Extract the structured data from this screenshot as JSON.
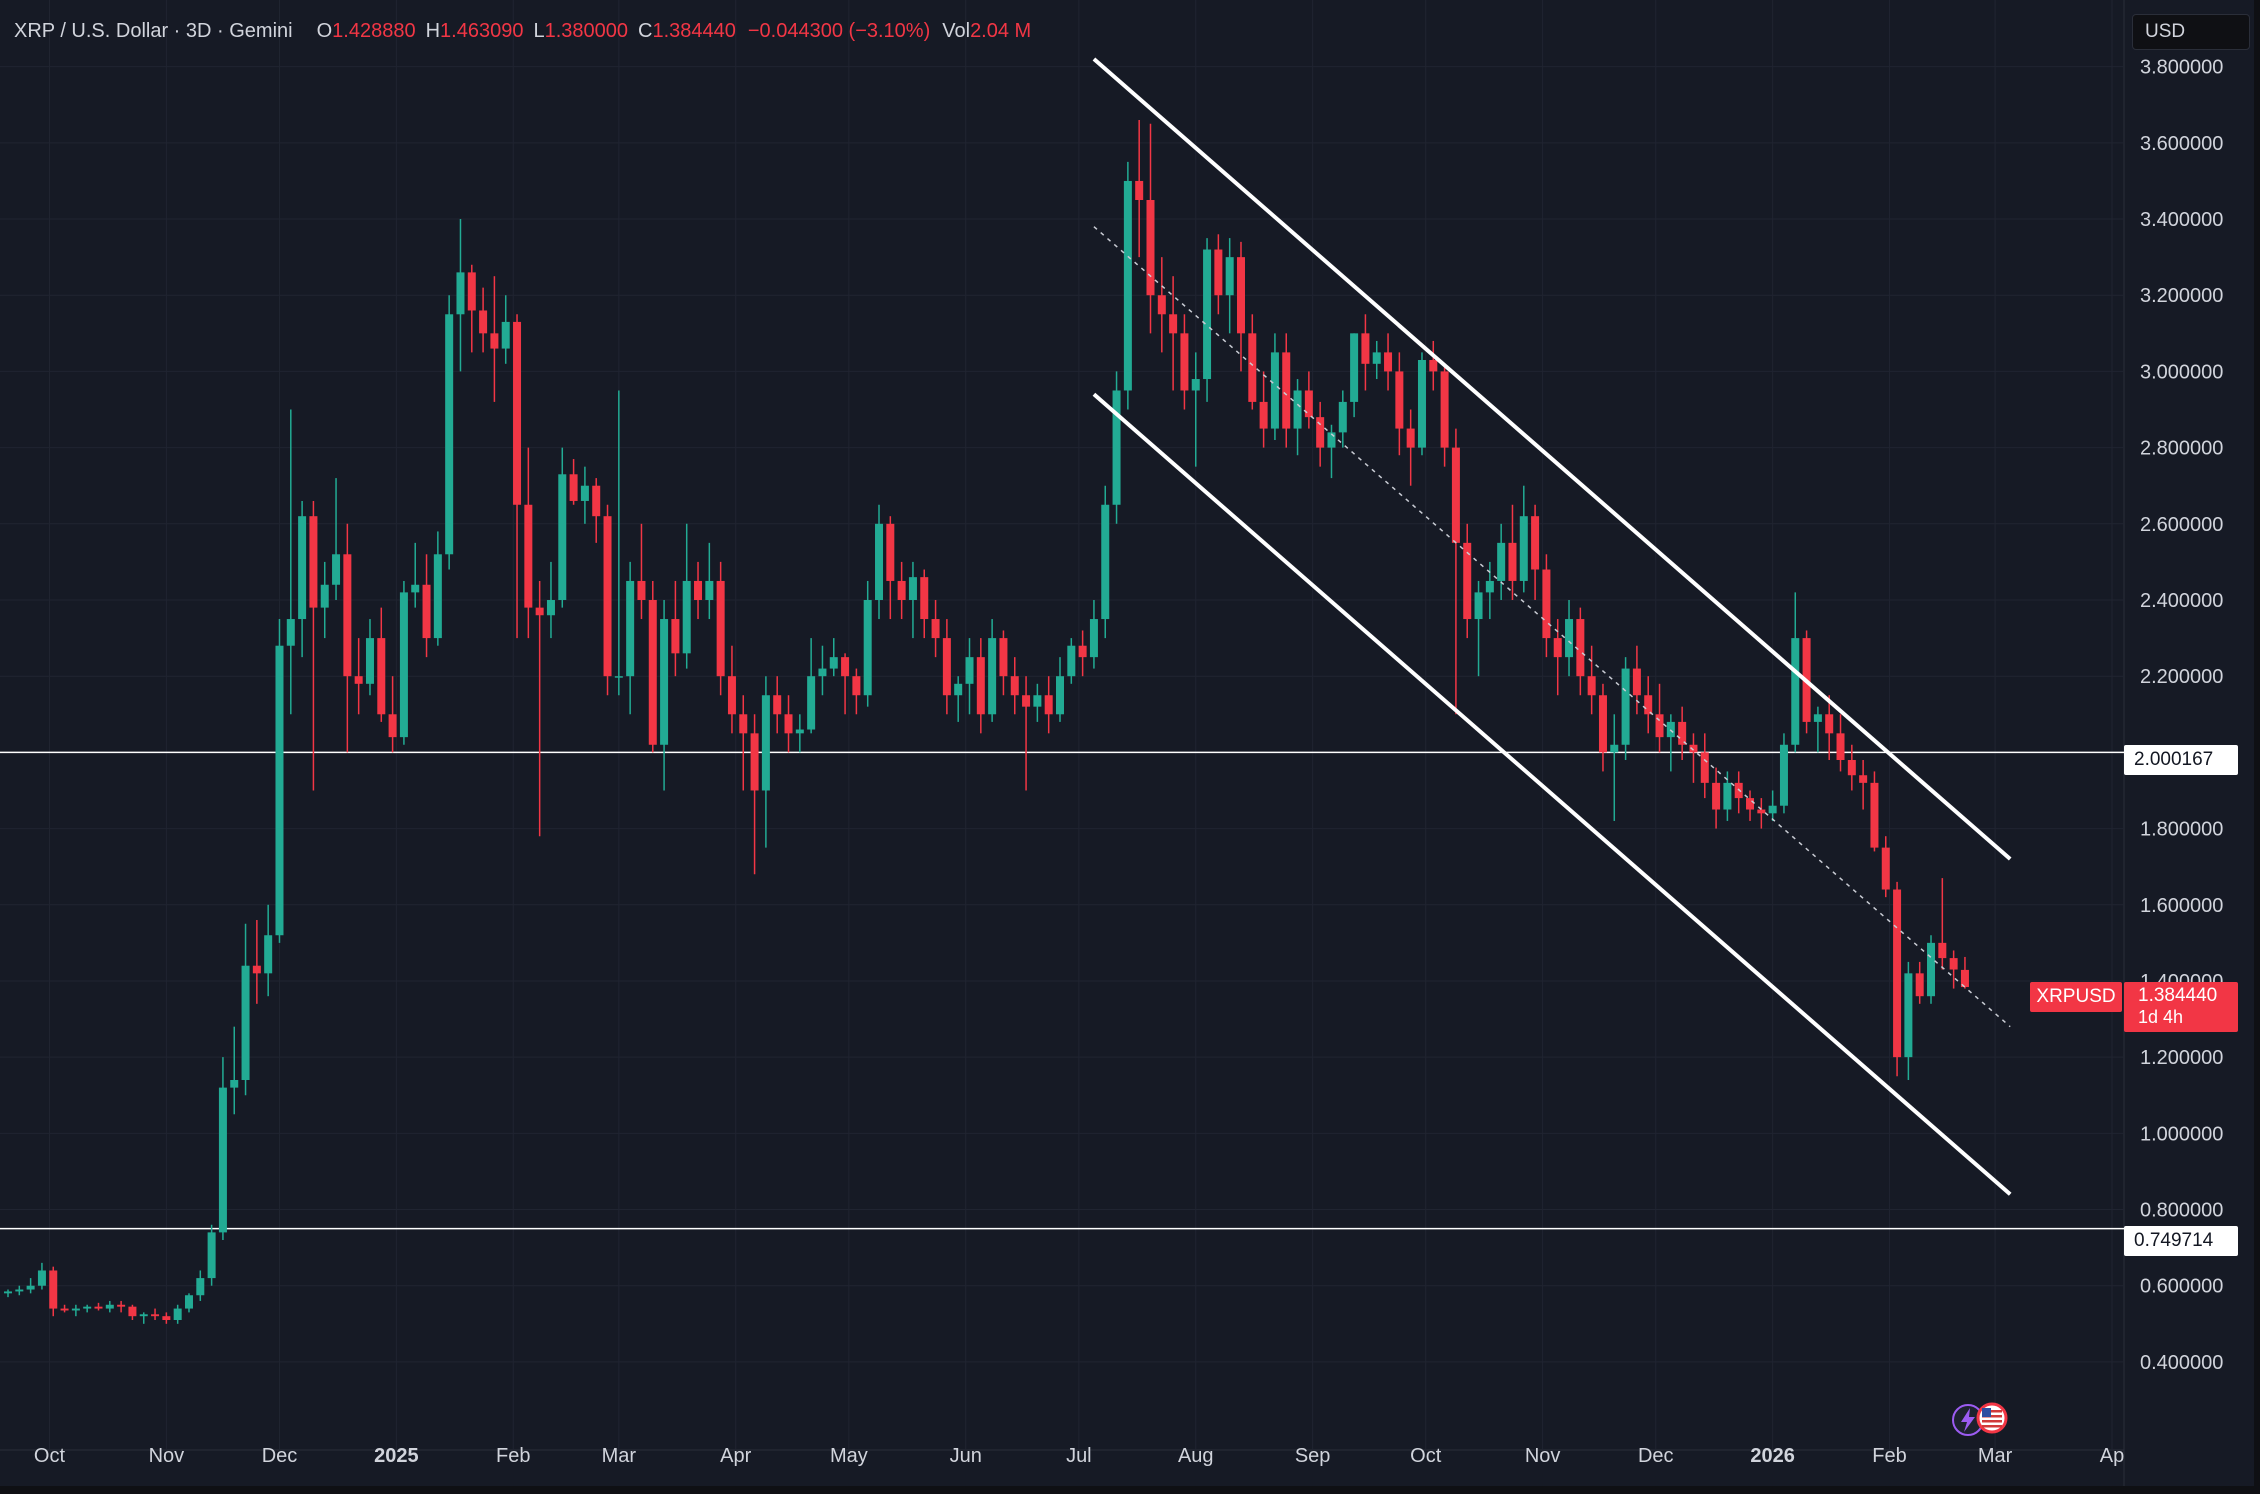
{
  "legend": {
    "symbol": "XRP / U.S. Dollar · 3D · Gemini",
    "open_label": "O",
    "open": "1.428880",
    "high_label": "H",
    "high": "1.463090",
    "low_label": "L",
    "low": "1.380000",
    "close_label": "C",
    "close": "1.384440",
    "change": "−0.044300 (−3.10%)",
    "vol_label": "Vol",
    "vol": "2.04 M"
  },
  "currency_button": "USD",
  "price_tag": {
    "symbol": "XRPUSD",
    "price": "1.384440",
    "countdown": "1d 4h"
  },
  "level_tags": [
    "2.000167",
    "0.749714"
  ],
  "colors": {
    "background": "#161a25",
    "up": "#22ab94",
    "down": "#f23645",
    "grid": "#202431",
    "text": "#d1d4dc",
    "lines": "#ffffff"
  },
  "icons": [
    "lightning-icon",
    "us-flag-icon"
  ],
  "chart_data": {
    "type": "candlestick",
    "title": "XRP / U.S. Dollar · 3D · Gemini",
    "y_ticks": [
      "3.800000",
      "3.600000",
      "3.400000",
      "3.200000",
      "3.000000",
      "2.800000",
      "2.600000",
      "2.400000",
      "2.200000",
      "2.000000",
      "1.800000",
      "1.600000",
      "1.400000",
      "1.200000",
      "1.000000",
      "0.800000",
      "0.600000",
      "0.400000"
    ],
    "x_labels": [
      {
        "label": "Oct",
        "date": "2024-10-01"
      },
      {
        "label": "Nov",
        "date": "2024-11-01"
      },
      {
        "label": "Dec",
        "date": "2024-12-01"
      },
      {
        "label": "2025",
        "date": "2025-01-01",
        "bold": true
      },
      {
        "label": "Feb",
        "date": "2025-02-01"
      },
      {
        "label": "Mar",
        "date": "2025-03-01"
      },
      {
        "label": "Apr",
        "date": "2025-04-01"
      },
      {
        "label": "May",
        "date": "2025-05-01"
      },
      {
        "label": "Jun",
        "date": "2025-06-01"
      },
      {
        "label": "Jul",
        "date": "2025-07-01"
      },
      {
        "label": "Aug",
        "date": "2025-08-01"
      },
      {
        "label": "Sep",
        "date": "2025-09-01"
      },
      {
        "label": "Oct",
        "date": "2025-10-01"
      },
      {
        "label": "Nov",
        "date": "2025-11-01"
      },
      {
        "label": "Dec",
        "date": "2025-12-01"
      },
      {
        "label": "2026",
        "date": "2026-01-01",
        "bold": true
      },
      {
        "label": "Feb",
        "date": "2026-02-01"
      },
      {
        "label": "Mar",
        "date": "2026-03-01"
      },
      {
        "label": "Ap",
        "date": "2026-04-01"
      }
    ],
    "ylim": [
      0.3,
      3.87
    ],
    "xlim": [
      "2024-09-20",
      "2026-04-01"
    ],
    "horizontal_levels": [
      2.000167,
      0.749714
    ],
    "channel": {
      "upper": [
        [
          "2025-07-05",
          3.82
        ],
        [
          "2026-03-05",
          1.72
        ]
      ],
      "lower": [
        [
          "2025-07-05",
          2.94
        ],
        [
          "2026-03-05",
          0.84
        ]
      ],
      "mid_dotted": [
        [
          "2025-07-05",
          3.38
        ],
        [
          "2026-03-05",
          1.28
        ]
      ]
    },
    "candles": [
      [
        "2024-09-20",
        0.58,
        0.59,
        0.57,
        0.585
      ],
      [
        "2024-09-23",
        0.585,
        0.6,
        0.575,
        0.59
      ],
      [
        "2024-09-26",
        0.59,
        0.62,
        0.58,
        0.6
      ],
      [
        "2024-09-29",
        0.6,
        0.66,
        0.59,
        0.64
      ],
      [
        "2024-10-02",
        0.64,
        0.65,
        0.52,
        0.54
      ],
      [
        "2024-10-05",
        0.54,
        0.55,
        0.53,
        0.535
      ],
      [
        "2024-10-08",
        0.535,
        0.55,
        0.52,
        0.54
      ],
      [
        "2024-10-11",
        0.54,
        0.55,
        0.53,
        0.545
      ],
      [
        "2024-10-14",
        0.545,
        0.555,
        0.535,
        0.54
      ],
      [
        "2024-10-17",
        0.54,
        0.56,
        0.53,
        0.55
      ],
      [
        "2024-10-20",
        0.55,
        0.56,
        0.53,
        0.545
      ],
      [
        "2024-10-23",
        0.545,
        0.55,
        0.51,
        0.52
      ],
      [
        "2024-10-26",
        0.52,
        0.53,
        0.5,
        0.525
      ],
      [
        "2024-10-29",
        0.525,
        0.54,
        0.51,
        0.52
      ],
      [
        "2024-11-01",
        0.52,
        0.53,
        0.5,
        0.51
      ],
      [
        "2024-11-04",
        0.51,
        0.55,
        0.5,
        0.54
      ],
      [
        "2024-11-07",
        0.54,
        0.58,
        0.53,
        0.575
      ],
      [
        "2024-11-10",
        0.575,
        0.64,
        0.56,
        0.62
      ],
      [
        "2024-11-13",
        0.62,
        0.76,
        0.6,
        0.74
      ],
      [
        "2024-11-16",
        0.74,
        1.2,
        0.72,
        1.12
      ],
      [
        "2024-11-19",
        1.12,
        1.28,
        1.05,
        1.14
      ],
      [
        "2024-11-22",
        1.14,
        1.55,
        1.1,
        1.44
      ],
      [
        "2024-11-25",
        1.44,
        1.56,
        1.34,
        1.42
      ],
      [
        "2024-11-28",
        1.42,
        1.6,
        1.36,
        1.52
      ],
      [
        "2024-12-01",
        1.52,
        2.35,
        1.5,
        2.28
      ],
      [
        "2024-12-04",
        2.28,
        2.9,
        2.1,
        2.35
      ],
      [
        "2024-12-07",
        2.35,
        2.66,
        2.25,
        2.62
      ],
      [
        "2024-12-10",
        2.62,
        2.66,
        1.9,
        2.38
      ],
      [
        "2024-12-13",
        2.38,
        2.5,
        2.3,
        2.44
      ],
      [
        "2024-12-16",
        2.44,
        2.72,
        2.4,
        2.52
      ],
      [
        "2024-12-19",
        2.52,
        2.6,
        2.0,
        2.2
      ],
      [
        "2024-12-22",
        2.2,
        2.3,
        2.1,
        2.18
      ],
      [
        "2024-12-25",
        2.18,
        2.35,
        2.15,
        2.3
      ],
      [
        "2024-12-28",
        2.3,
        2.38,
        2.08,
        2.1
      ],
      [
        "2024-12-31",
        2.1,
        2.2,
        2.0,
        2.04
      ],
      [
        "2025-01-03",
        2.04,
        2.45,
        2.02,
        2.42
      ],
      [
        "2025-01-06",
        2.42,
        2.55,
        2.38,
        2.44
      ],
      [
        "2025-01-09",
        2.44,
        2.52,
        2.25,
        2.3
      ],
      [
        "2025-01-12",
        2.3,
        2.58,
        2.28,
        2.52
      ],
      [
        "2025-01-15",
        2.52,
        3.2,
        2.48,
        3.15
      ],
      [
        "2025-01-18",
        3.15,
        3.4,
        3.0,
        3.26
      ],
      [
        "2025-01-21",
        3.26,
        3.28,
        3.05,
        3.16
      ],
      [
        "2025-01-24",
        3.16,
        3.22,
        3.05,
        3.1
      ],
      [
        "2025-01-27",
        3.1,
        3.25,
        2.92,
        3.06
      ],
      [
        "2025-01-30",
        3.06,
        3.2,
        3.02,
        3.13
      ],
      [
        "2025-02-02",
        3.13,
        3.15,
        2.3,
        2.65
      ],
      [
        "2025-02-05",
        2.65,
        2.8,
        2.3,
        2.38
      ],
      [
        "2025-02-08",
        2.38,
        2.45,
        1.78,
        2.36
      ],
      [
        "2025-02-11",
        2.36,
        2.5,
        2.3,
        2.4
      ],
      [
        "2025-02-14",
        2.4,
        2.8,
        2.38,
        2.73
      ],
      [
        "2025-02-17",
        2.73,
        2.77,
        2.65,
        2.66
      ],
      [
        "2025-02-20",
        2.66,
        2.75,
        2.6,
        2.7
      ],
      [
        "2025-02-23",
        2.7,
        2.72,
        2.55,
        2.62
      ],
      [
        "2025-02-26",
        2.62,
        2.65,
        2.15,
        2.2
      ],
      [
        "2025-03-01",
        2.2,
        2.95,
        2.15,
        2.2
      ],
      [
        "2025-03-04",
        2.2,
        2.5,
        2.1,
        2.45
      ],
      [
        "2025-03-07",
        2.45,
        2.6,
        2.35,
        2.4
      ],
      [
        "2025-03-10",
        2.4,
        2.45,
        2.0,
        2.02
      ],
      [
        "2025-03-13",
        2.02,
        2.4,
        1.9,
        2.35
      ],
      [
        "2025-03-16",
        2.35,
        2.45,
        2.2,
        2.26
      ],
      [
        "2025-03-19",
        2.26,
        2.6,
        2.22,
        2.45
      ],
      [
        "2025-03-22",
        2.45,
        2.5,
        2.35,
        2.4
      ],
      [
        "2025-03-25",
        2.4,
        2.55,
        2.35,
        2.45
      ],
      [
        "2025-03-28",
        2.45,
        2.5,
        2.15,
        2.2
      ],
      [
        "2025-03-31",
        2.2,
        2.28,
        2.05,
        2.1
      ],
      [
        "2025-04-03",
        2.1,
        2.15,
        1.9,
        2.05
      ],
      [
        "2025-04-06",
        2.05,
        2.1,
        1.68,
        1.9
      ],
      [
        "2025-04-09",
        1.9,
        2.2,
        1.75,
        2.15
      ],
      [
        "2025-04-12",
        2.15,
        2.2,
        2.05,
        2.1
      ],
      [
        "2025-04-15",
        2.1,
        2.15,
        2.0,
        2.05
      ],
      [
        "2025-04-18",
        2.05,
        2.1,
        2.0,
        2.06
      ],
      [
        "2025-04-21",
        2.06,
        2.3,
        2.05,
        2.2
      ],
      [
        "2025-04-24",
        2.2,
        2.28,
        2.15,
        2.22
      ],
      [
        "2025-04-27",
        2.22,
        2.3,
        2.2,
        2.25
      ],
      [
        "2025-04-30",
        2.25,
        2.26,
        2.1,
        2.2
      ],
      [
        "2025-05-03",
        2.2,
        2.22,
        2.1,
        2.15
      ],
      [
        "2025-05-06",
        2.15,
        2.45,
        2.12,
        2.4
      ],
      [
        "2025-05-09",
        2.4,
        2.65,
        2.35,
        2.6
      ],
      [
        "2025-05-12",
        2.6,
        2.62,
        2.35,
        2.45
      ],
      [
        "2025-05-15",
        2.45,
        2.5,
        2.35,
        2.4
      ],
      [
        "2025-05-18",
        2.4,
        2.5,
        2.3,
        2.46
      ],
      [
        "2025-05-21",
        2.46,
        2.48,
        2.3,
        2.35
      ],
      [
        "2025-05-24",
        2.35,
        2.4,
        2.25,
        2.3
      ],
      [
        "2025-05-27",
        2.3,
        2.35,
        2.1,
        2.15
      ],
      [
        "2025-05-30",
        2.15,
        2.2,
        2.08,
        2.18
      ],
      [
        "2025-06-02",
        2.18,
        2.3,
        2.1,
        2.25
      ],
      [
        "2025-06-05",
        2.25,
        2.3,
        2.05,
        2.1
      ],
      [
        "2025-06-08",
        2.1,
        2.35,
        2.08,
        2.3
      ],
      [
        "2025-06-11",
        2.3,
        2.32,
        2.15,
        2.2
      ],
      [
        "2025-06-14",
        2.2,
        2.25,
        2.1,
        2.15
      ],
      [
        "2025-06-17",
        2.15,
        2.2,
        1.9,
        2.12
      ],
      [
        "2025-06-20",
        2.12,
        2.18,
        2.08,
        2.15
      ],
      [
        "2025-06-23",
        2.15,
        2.2,
        2.05,
        2.1
      ],
      [
        "2025-06-26",
        2.1,
        2.25,
        2.08,
        2.2
      ],
      [
        "2025-06-29",
        2.2,
        2.3,
        2.18,
        2.28
      ],
      [
        "2025-07-02",
        2.28,
        2.32,
        2.2,
        2.25
      ],
      [
        "2025-07-05",
        2.25,
        2.4,
        2.22,
        2.35
      ],
      [
        "2025-07-08",
        2.35,
        2.7,
        2.3,
        2.65
      ],
      [
        "2025-07-11",
        2.65,
        3.0,
        2.6,
        2.95
      ],
      [
        "2025-07-14",
        2.95,
        3.55,
        2.9,
        3.5
      ],
      [
        "2025-07-17",
        3.5,
        3.66,
        3.3,
        3.45
      ],
      [
        "2025-07-20",
        3.45,
        3.65,
        3.1,
        3.2
      ],
      [
        "2025-07-23",
        3.2,
        3.3,
        3.05,
        3.15
      ],
      [
        "2025-07-26",
        3.15,
        3.25,
        2.95,
        3.1
      ],
      [
        "2025-07-29",
        3.1,
        3.15,
        2.9,
        2.95
      ],
      [
        "2025-08-01",
        2.95,
        3.05,
        2.75,
        2.98
      ],
      [
        "2025-08-04",
        2.98,
        3.35,
        2.92,
        3.32
      ],
      [
        "2025-08-07",
        3.32,
        3.36,
        3.15,
        3.2
      ],
      [
        "2025-08-10",
        3.2,
        3.35,
        3.1,
        3.3
      ],
      [
        "2025-08-13",
        3.3,
        3.34,
        3.0,
        3.1
      ],
      [
        "2025-08-16",
        3.1,
        3.15,
        2.9,
        2.92
      ],
      [
        "2025-08-19",
        2.92,
        3.0,
        2.8,
        2.85
      ],
      [
        "2025-08-22",
        2.85,
        3.1,
        2.82,
        3.05
      ],
      [
        "2025-08-25",
        3.05,
        3.1,
        2.8,
        2.85
      ],
      [
        "2025-08-28",
        2.85,
        2.98,
        2.78,
        2.95
      ],
      [
        "2025-08-31",
        2.95,
        3.0,
        2.85,
        2.88
      ],
      [
        "2025-09-03",
        2.88,
        2.92,
        2.75,
        2.8
      ],
      [
        "2025-09-06",
        2.8,
        2.86,
        2.72,
        2.84
      ],
      [
        "2025-09-09",
        2.84,
        2.95,
        2.8,
        2.92
      ],
      [
        "2025-09-12",
        2.92,
        3.1,
        2.88,
        3.1
      ],
      [
        "2025-09-15",
        3.1,
        3.15,
        2.95,
        3.02
      ],
      [
        "2025-09-18",
        3.02,
        3.08,
        2.98,
        3.05
      ],
      [
        "2025-09-21",
        3.05,
        3.1,
        2.95,
        3.0
      ],
      [
        "2025-09-24",
        3.0,
        3.05,
        2.78,
        2.85
      ],
      [
        "2025-09-27",
        2.85,
        2.9,
        2.7,
        2.8
      ],
      [
        "2025-09-30",
        2.8,
        3.05,
        2.78,
        3.03
      ],
      [
        "2025-10-03",
        3.03,
        3.08,
        2.95,
        3.0
      ],
      [
        "2025-10-06",
        3.0,
        3.02,
        2.75,
        2.8
      ],
      [
        "2025-10-09",
        2.8,
        2.85,
        2.1,
        2.55
      ],
      [
        "2025-10-12",
        2.55,
        2.6,
        2.3,
        2.35
      ],
      [
        "2025-10-15",
        2.35,
        2.45,
        2.2,
        2.42
      ],
      [
        "2025-10-18",
        2.42,
        2.5,
        2.35,
        2.45
      ],
      [
        "2025-10-21",
        2.45,
        2.6,
        2.4,
        2.55
      ],
      [
        "2025-10-24",
        2.55,
        2.65,
        2.4,
        2.45
      ],
      [
        "2025-10-27",
        2.45,
        2.7,
        2.42,
        2.62
      ],
      [
        "2025-10-30",
        2.62,
        2.65,
        2.4,
        2.48
      ],
      [
        "2025-11-02",
        2.48,
        2.52,
        2.25,
        2.3
      ],
      [
        "2025-11-05",
        2.3,
        2.35,
        2.15,
        2.25
      ],
      [
        "2025-11-08",
        2.25,
        2.4,
        2.2,
        2.35
      ],
      [
        "2025-11-11",
        2.35,
        2.38,
        2.15,
        2.2
      ],
      [
        "2025-11-14",
        2.2,
        2.28,
        2.1,
        2.15
      ],
      [
        "2025-11-17",
        2.15,
        2.18,
        1.95,
        2.0
      ],
      [
        "2025-11-20",
        2.0,
        2.1,
        1.82,
        2.02
      ],
      [
        "2025-11-23",
        2.02,
        2.25,
        1.98,
        2.22
      ],
      [
        "2025-11-26",
        2.22,
        2.28,
        2.1,
        2.15
      ],
      [
        "2025-11-29",
        2.15,
        2.2,
        2.05,
        2.1
      ],
      [
        "2025-12-02",
        2.1,
        2.18,
        2.0,
        2.04
      ],
      [
        "2025-12-05",
        2.04,
        2.1,
        1.95,
        2.08
      ],
      [
        "2025-12-08",
        2.08,
        2.12,
        1.98,
        2.02
      ],
      [
        "2025-12-11",
        2.02,
        2.05,
        1.92,
        2.0
      ],
      [
        "2025-12-14",
        2.0,
        2.05,
        1.88,
        1.92
      ],
      [
        "2025-12-17",
        1.92,
        1.96,
        1.8,
        1.85
      ],
      [
        "2025-12-20",
        1.85,
        1.95,
        1.82,
        1.92
      ],
      [
        "2025-12-23",
        1.92,
        1.95,
        1.84,
        1.88
      ],
      [
        "2025-12-26",
        1.88,
        1.9,
        1.82,
        1.85
      ],
      [
        "2025-12-29",
        1.85,
        1.88,
        1.8,
        1.84
      ],
      [
        "2026-01-01",
        1.84,
        1.9,
        1.82,
        1.86
      ],
      [
        "2026-01-04",
        1.86,
        2.05,
        1.84,
        2.02
      ],
      [
        "2026-01-07",
        2.02,
        2.42,
        2.0,
        2.3
      ],
      [
        "2026-01-10",
        2.3,
        2.32,
        2.05,
        2.08
      ],
      [
        "2026-01-13",
        2.08,
        2.12,
        2.0,
        2.1
      ],
      [
        "2026-01-16",
        2.1,
        2.15,
        1.98,
        2.05
      ],
      [
        "2026-01-19",
        2.05,
        2.1,
        1.95,
        1.98
      ],
      [
        "2026-01-22",
        1.98,
        2.02,
        1.9,
        1.94
      ],
      [
        "2026-01-25",
        1.94,
        1.98,
        1.85,
        1.92
      ],
      [
        "2026-01-28",
        1.92,
        1.95,
        1.74,
        1.75
      ],
      [
        "2026-01-31",
        1.75,
        1.78,
        1.62,
        1.64
      ],
      [
        "2026-02-03",
        1.64,
        1.66,
        1.15,
        1.2
      ],
      [
        "2026-02-06",
        1.2,
        1.45,
        1.14,
        1.42
      ],
      [
        "2026-02-09",
        1.42,
        1.45,
        1.34,
        1.36
      ],
      [
        "2026-02-12",
        1.36,
        1.52,
        1.34,
        1.5
      ],
      [
        "2026-02-15",
        1.5,
        1.67,
        1.43,
        1.46
      ],
      [
        "2026-02-18",
        1.46,
        1.48,
        1.38,
        1.43
      ],
      [
        "2026-02-21",
        1.429,
        1.463,
        1.38,
        1.384
      ]
    ]
  }
}
